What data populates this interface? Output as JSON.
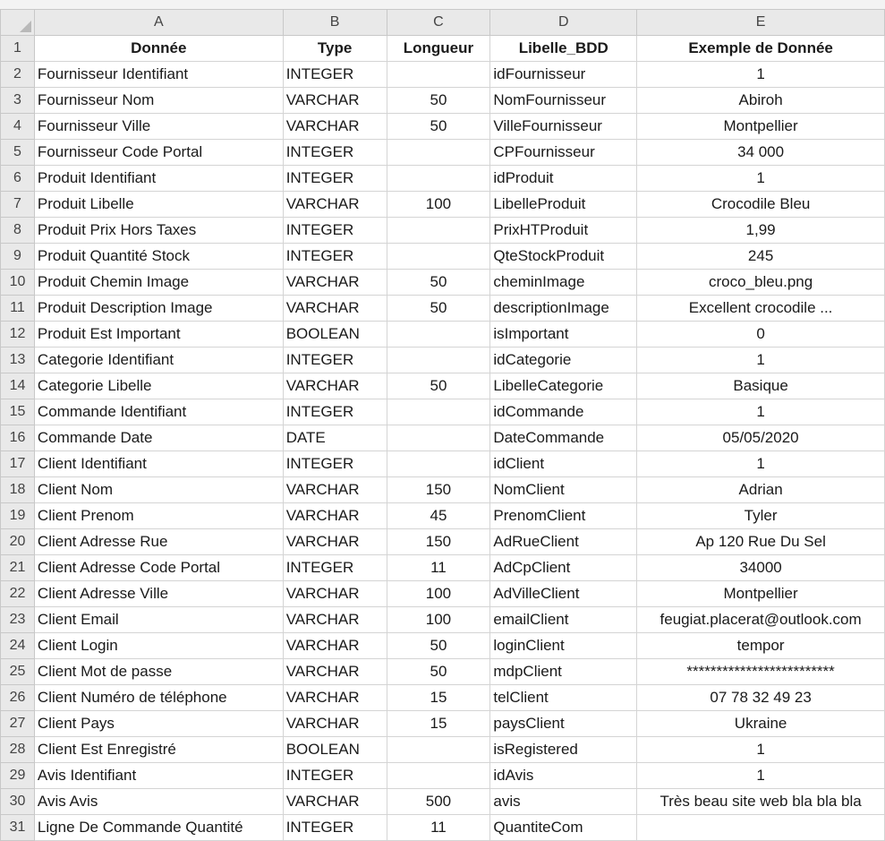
{
  "columns": [
    "A",
    "B",
    "C",
    "D",
    "E"
  ],
  "header_row": {
    "num": "1",
    "cells": [
      "Donnée",
      "Type",
      "Longueur",
      "Libelle_BDD",
      "Exemple de Donnée"
    ]
  },
  "rows": [
    {
      "num": "2",
      "cells": [
        "Fournisseur Identifiant",
        "INTEGER",
        "",
        "idFournisseur",
        "1"
      ]
    },
    {
      "num": "3",
      "cells": [
        "Fournisseur Nom",
        "VARCHAR",
        "50",
        "NomFournisseur",
        "Abiroh"
      ]
    },
    {
      "num": "4",
      "cells": [
        "Fournisseur Ville",
        "VARCHAR",
        "50",
        "VilleFournisseur",
        "Montpellier"
      ]
    },
    {
      "num": "5",
      "cells": [
        "Fournisseur Code Portal",
        "INTEGER",
        "",
        "CPFournisseur",
        "34 000"
      ]
    },
    {
      "num": "6",
      "cells": [
        "Produit Identifiant",
        "INTEGER",
        "",
        "idProduit",
        "1"
      ]
    },
    {
      "num": "7",
      "cells": [
        "Produit Libelle",
        "VARCHAR",
        "100",
        "LibelleProduit",
        "Crocodile Bleu"
      ]
    },
    {
      "num": "8",
      "cells": [
        "Produit Prix Hors Taxes",
        "INTEGER",
        "",
        "PrixHTProduit",
        "1,99"
      ]
    },
    {
      "num": "9",
      "cells": [
        "Produit Quantité Stock",
        "INTEGER",
        "",
        "QteStockProduit",
        "245"
      ]
    },
    {
      "num": "10",
      "cells": [
        "Produit Chemin Image",
        "VARCHAR",
        "50",
        "cheminImage",
        "croco_bleu.png"
      ]
    },
    {
      "num": "11",
      "cells": [
        "Produit Description Image",
        "VARCHAR",
        "50",
        "descriptionImage",
        "Excellent crocodile ..."
      ]
    },
    {
      "num": "12",
      "cells": [
        "Produit Est Important",
        "BOOLEAN",
        "",
        "isImportant",
        "0"
      ]
    },
    {
      "num": "13",
      "cells": [
        "Categorie Identifiant",
        "INTEGER",
        "",
        "idCategorie",
        "1"
      ]
    },
    {
      "num": "14",
      "cells": [
        "Categorie Libelle",
        "VARCHAR",
        "50",
        "LibelleCategorie",
        "Basique"
      ]
    },
    {
      "num": "15",
      "cells": [
        "Commande Identifiant",
        "INTEGER",
        "",
        "idCommande",
        "1"
      ]
    },
    {
      "num": "16",
      "cells": [
        "Commande Date",
        "DATE",
        "",
        "DateCommande",
        "05/05/2020"
      ]
    },
    {
      "num": "17",
      "cells": [
        "Client Identifiant",
        "INTEGER",
        "",
        "idClient",
        "1"
      ]
    },
    {
      "num": "18",
      "cells": [
        "Client Nom",
        "VARCHAR",
        "150",
        "NomClient",
        "Adrian"
      ]
    },
    {
      "num": "19",
      "cells": [
        "Client Prenom",
        "VARCHAR",
        "45",
        "PrenomClient",
        "Tyler"
      ]
    },
    {
      "num": "20",
      "cells": [
        "Client Adresse Rue",
        "VARCHAR",
        "150",
        "AdRueClient",
        "Ap 120 Rue Du Sel"
      ]
    },
    {
      "num": "21",
      "cells": [
        "Client Adresse Code Portal",
        "INTEGER",
        "11",
        "AdCpClient",
        "34000"
      ]
    },
    {
      "num": "22",
      "cells": [
        "Client Adresse Ville",
        "VARCHAR",
        "100",
        "AdVilleClient",
        "Montpellier"
      ]
    },
    {
      "num": "23",
      "cells": [
        "Client Email",
        "VARCHAR",
        "100",
        "emailClient",
        "feugiat.placerat@outlook.com"
      ]
    },
    {
      "num": "24",
      "cells": [
        "Client Login",
        "VARCHAR",
        "50",
        "loginClient",
        "tempor"
      ]
    },
    {
      "num": "25",
      "cells": [
        "Client Mot de passe",
        "VARCHAR",
        "50",
        "mdpClient",
        "*************************"
      ]
    },
    {
      "num": "26",
      "cells": [
        "Client Numéro de téléphone",
        "VARCHAR",
        "15",
        "telClient",
        "07 78 32 49 23"
      ]
    },
    {
      "num": "27",
      "cells": [
        "Client Pays",
        "VARCHAR",
        "15",
        "paysClient",
        "Ukraine"
      ]
    },
    {
      "num": "28",
      "cells": [
        "Client Est Enregistré",
        "BOOLEAN",
        "",
        "isRegistered",
        "1"
      ]
    },
    {
      "num": "29",
      "cells": [
        "Avis Identifiant",
        "INTEGER",
        "",
        "idAvis",
        "1"
      ]
    },
    {
      "num": "30",
      "cells": [
        "Avis Avis",
        "VARCHAR",
        "500",
        "avis",
        "Très beau site web bla bla bla"
      ]
    },
    {
      "num": "31",
      "cells": [
        "Ligne De Commande Quantité",
        "INTEGER",
        "11",
        "QuantiteCom",
        ""
      ]
    }
  ]
}
